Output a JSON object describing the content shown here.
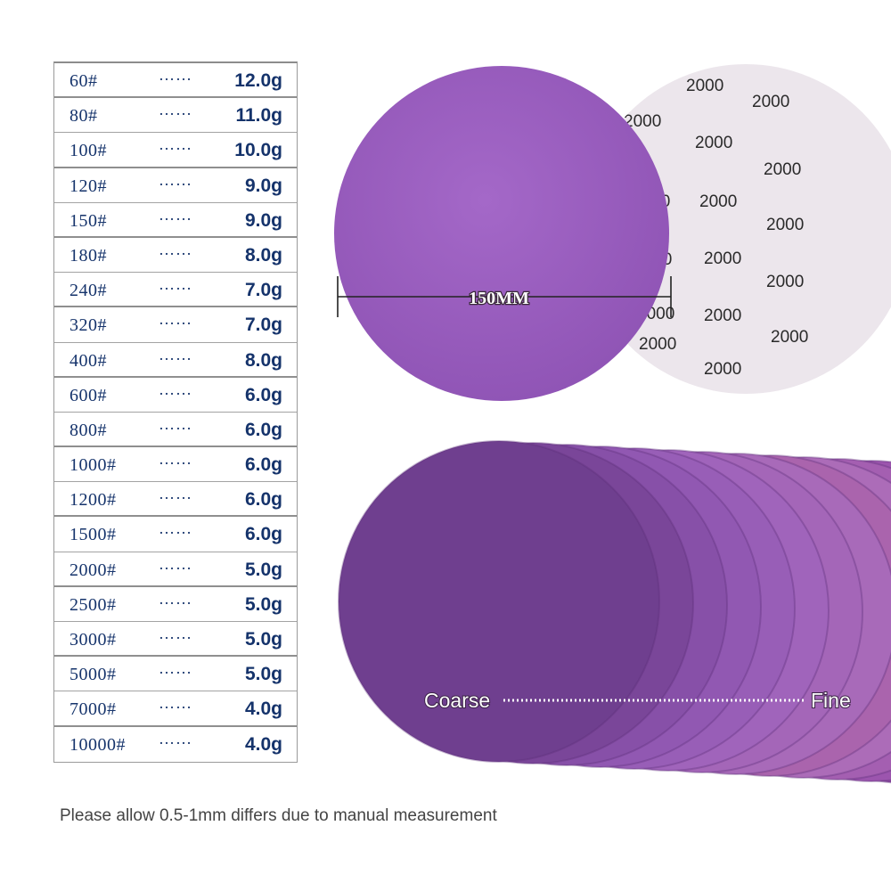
{
  "grit_table": {
    "dots": "……",
    "rows": [
      {
        "grit": "60#",
        "weight": "12.0g"
      },
      {
        "grit": "80#",
        "weight": "11.0g"
      },
      {
        "grit": "100#",
        "weight": "10.0g"
      },
      {
        "grit": "120#",
        "weight": "9.0g"
      },
      {
        "grit": "150#",
        "weight": "9.0g"
      },
      {
        "grit": "180#",
        "weight": "8.0g"
      },
      {
        "grit": "240#",
        "weight": "7.0g"
      },
      {
        "grit": "320#",
        "weight": "7.0g"
      },
      {
        "grit": "400#",
        "weight": "8.0g"
      },
      {
        "grit": "600#",
        "weight": "6.0g"
      },
      {
        "grit": "800#",
        "weight": "6.0g"
      },
      {
        "grit": "1000#",
        "weight": "6.0g"
      },
      {
        "grit": "1200#",
        "weight": "6.0g"
      },
      {
        "grit": "1500#",
        "weight": "6.0g"
      },
      {
        "grit": "2000#",
        "weight": "5.0g"
      },
      {
        "grit": "2500#",
        "weight": "5.0g"
      },
      {
        "grit": "3000#",
        "weight": "5.0g"
      },
      {
        "grit": "5000#",
        "weight": "5.0g"
      },
      {
        "grit": "7000#",
        "weight": "4.0g"
      },
      {
        "grit": "10000#",
        "weight": "4.0g"
      }
    ]
  },
  "disc_photo": {
    "diameter_label": "150MM",
    "back_number": "2000",
    "front_color": "#9b5ec0",
    "back_color": "#ece6ec"
  },
  "fan_photo": {
    "coarse_label": "Coarse",
    "fine_label": "Fine",
    "colors": [
      "#6f3f8f",
      "#7a4699",
      "#8750a8",
      "#9158b2",
      "#985eb7",
      "#a064bb",
      "#a466b8",
      "#a86ab9",
      "#aa64ad",
      "#ac6cb8",
      "#a45fb1",
      "#9c55ae",
      "#9450a8"
    ]
  },
  "footnote": "Please allow 0.5-1mm differs due to manual measurement"
}
